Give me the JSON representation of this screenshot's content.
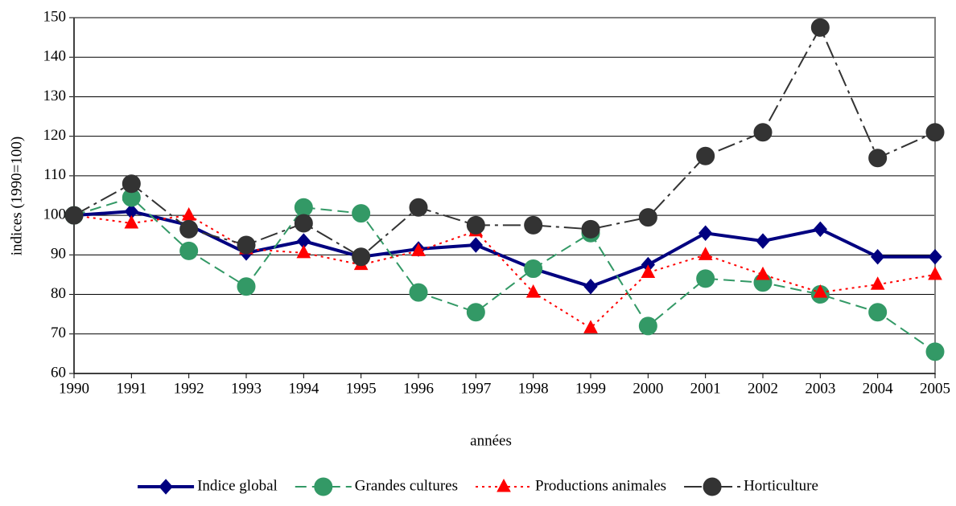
{
  "chart_data": {
    "type": "line",
    "x_label": "années",
    "y_label": "indices (1990=100)",
    "categories": [
      "1990",
      "1991",
      "1992",
      "1993",
      "1994",
      "1995",
      "1996",
      "1997",
      "1998",
      "1999",
      "2000",
      "2001",
      "2002",
      "2003",
      "2004",
      "2005"
    ],
    "ylim": [
      60,
      150
    ],
    "yticks": [
      60,
      70,
      80,
      90,
      100,
      110,
      120,
      130,
      140,
      150
    ],
    "grid": true,
    "legend": "bottom",
    "series": [
      {
        "name": "Indice global",
        "color": "#000080",
        "marker": "diamond",
        "dash": "solid",
        "values": [
          100,
          101,
          97.5,
          90.5,
          93.5,
          89.5,
          91.5,
          92.5,
          86.5,
          82,
          87.5,
          95.5,
          93.5,
          96.5,
          89.5,
          89.5
        ]
      },
      {
        "name": "Grandes cultures",
        "color": "#339966",
        "marker": "circle",
        "dash": "dashed",
        "values": [
          100,
          104.5,
          91,
          82,
          102,
          100.5,
          80.5,
          75.5,
          86.5,
          95.5,
          72,
          84,
          83,
          80,
          75.5,
          65.5
        ]
      },
      {
        "name": "Productions animales",
        "color": "#ff0000",
        "marker": "triangle",
        "dash": "dotted",
        "values": [
          100,
          98,
          100,
          91.5,
          90.5,
          87.5,
          91,
          96,
          80.5,
          71.5,
          85.5,
          90,
          85,
          80.5,
          82.5,
          85
        ]
      },
      {
        "name": "Horticulture",
        "color": "#333333",
        "marker": "circle",
        "dash": "dashdot",
        "values": [
          100,
          108,
          96.5,
          92.5,
          98,
          89.5,
          102,
          97.5,
          97.5,
          96.5,
          99.5,
          115,
          121,
          147.5,
          114.5,
          121
        ]
      }
    ]
  }
}
